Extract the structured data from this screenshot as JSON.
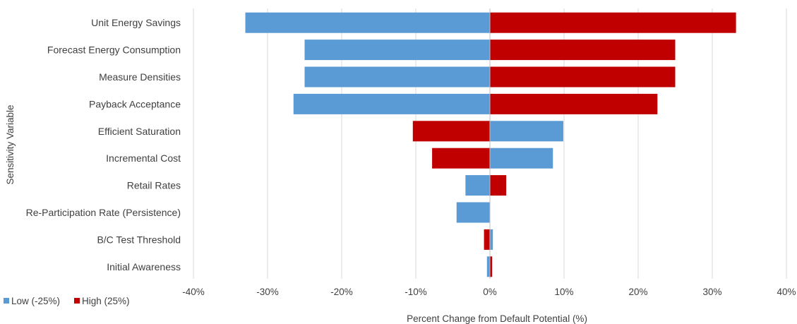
{
  "chart_data": {
    "type": "bar",
    "orientation": "horizontal",
    "stacking": "overlay",
    "title": "",
    "xlabel": "Percent Change from Default Potential (%)",
    "ylabel": "Sensitivity Variable",
    "xlim": [
      -40,
      40
    ],
    "x_ticks": [
      -40,
      -30,
      -20,
      -10,
      0,
      10,
      20,
      30,
      40
    ],
    "x_tick_labels": [
      "-40%",
      "-30%",
      "-20%",
      "-10%",
      "0%",
      "10%",
      "20%",
      "30%",
      "40%"
    ],
    "grid": "vertical",
    "legend": "bottom-left",
    "categories": [
      "Unit Energy Savings",
      "Forecast Energy Consumption",
      "Measure Densities",
      "Payback Acceptance",
      "Efficient Saturation",
      "Incremental Cost",
      "Retail Rates",
      "Re-Participation Rate (Persistence)",
      "B/C Test Threshold",
      "Initial Awareness"
    ],
    "series": [
      {
        "name": "Low (-25%)",
        "color": "#5B9BD5",
        "values": [
          -33.0,
          -25.0,
          -25.0,
          -26.5,
          9.9,
          8.5,
          -3.3,
          -4.5,
          0.4,
          -0.4
        ]
      },
      {
        "name": "High (25%)",
        "color": "#C00000",
        "values": [
          33.2,
          25.0,
          25.0,
          22.6,
          -10.4,
          -7.8,
          2.2,
          0.0,
          -0.8,
          0.3
        ]
      }
    ]
  },
  "colors": {
    "gridline": "#D9D9D9",
    "zero_axis": "#BFBFBF",
    "text": "#404040"
  }
}
